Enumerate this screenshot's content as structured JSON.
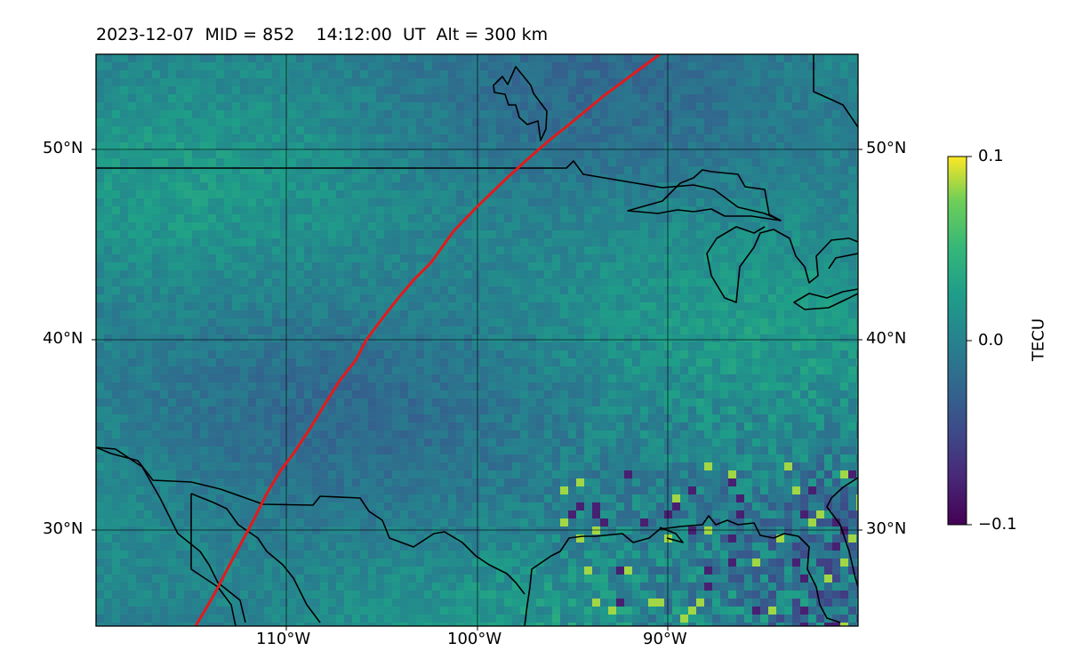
{
  "header": {
    "title": "2023-12-07  MID = 852    14:12:00  UT  Alt = 300 km"
  },
  "map": {
    "lon_range": [
      -120,
      -80
    ],
    "lat_range": [
      25,
      55
    ],
    "lat_gridlines": [
      30,
      40,
      50
    ],
    "lon_gridlines": [
      -110,
      -100,
      -90
    ],
    "lat_labels": [
      "30°N",
      "40°N",
      "50°N"
    ],
    "lon_labels": [
      "110°W",
      "100°W",
      "90°W"
    ],
    "track_color": "#e31a1c",
    "colormap": "viridis"
  },
  "colorbar": {
    "label": "TECU",
    "vmin": -0.1,
    "vmax": 0.1,
    "ticks": [
      "0.1",
      "0.0",
      "−0.1"
    ]
  }
}
